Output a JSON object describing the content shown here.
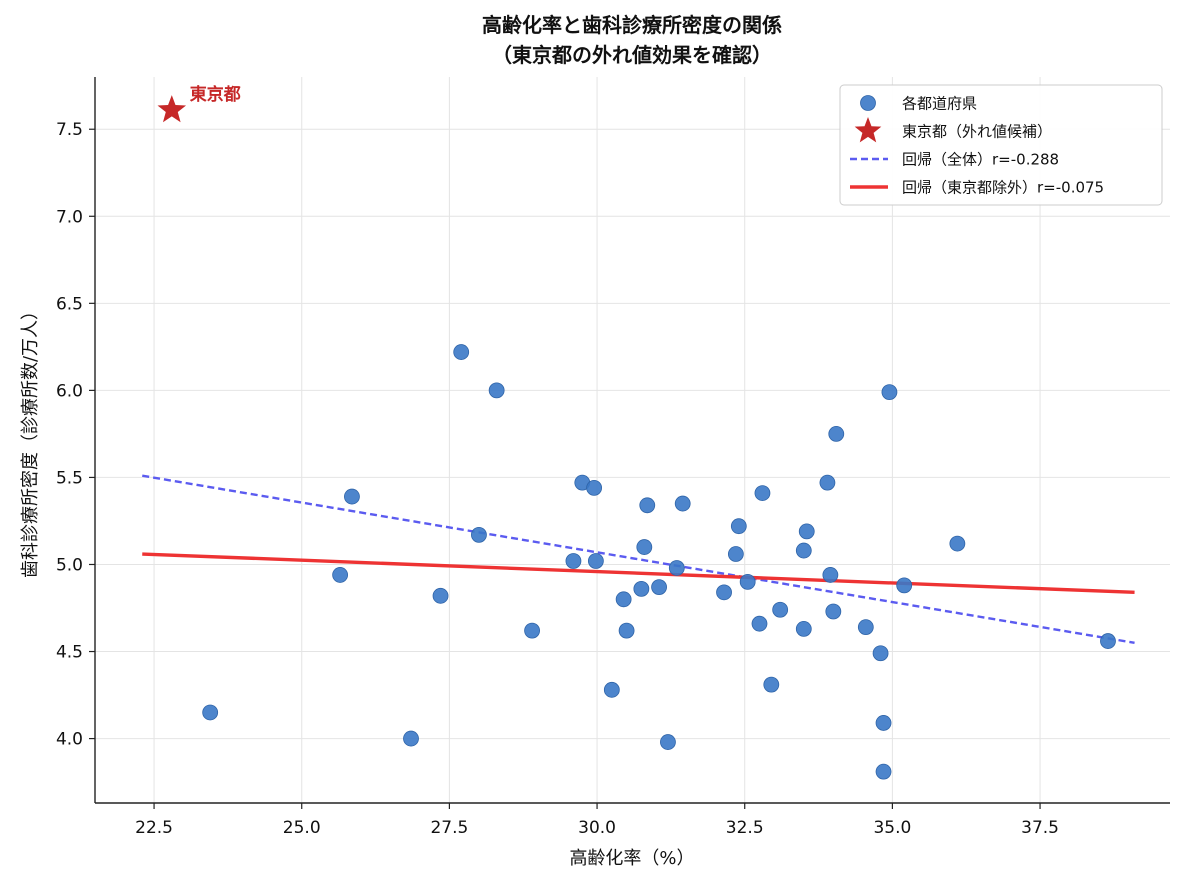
{
  "chart_data": {
    "type": "scatter",
    "title": "高齢化率と歯科診療所密度の関係",
    "subtitle": "（東京都の外れ値効果を確認）",
    "xlabel": "高齢化率（%）",
    "ylabel": "歯科診療所密度（診療所数/万人）",
    "xlim": [
      21.5,
      39.7
    ],
    "ylim": [
      3.63,
      7.8
    ],
    "xticks": [
      22.5,
      25.0,
      27.5,
      30.0,
      32.5,
      35.0,
      37.5
    ],
    "xtick_labels": [
      "22.5",
      "25.0",
      "27.5",
      "30.0",
      "32.5",
      "35.0",
      "37.5"
    ],
    "yticks": [
      4.0,
      4.5,
      5.0,
      5.5,
      6.0,
      6.5,
      7.0,
      7.5
    ],
    "ytick_labels": [
      "4.0",
      "4.5",
      "5.0",
      "5.5",
      "6.0",
      "6.5",
      "7.0",
      "7.5"
    ],
    "grid": true,
    "legend_position": "top-right",
    "series": [
      {
        "name": "各都道府県",
        "marker": "circle",
        "color": "#3a78c6",
        "x": [
          23.45,
          25.65,
          25.85,
          26.85,
          27.35,
          27.7,
          28.0,
          28.3,
          28.9,
          29.6,
          29.75,
          29.95,
          29.98,
          30.25,
          30.45,
          30.5,
          30.75,
          30.8,
          30.85,
          31.05,
          31.2,
          31.35,
          31.45,
          32.15,
          32.35,
          32.4,
          32.55,
          32.75,
          32.8,
          32.95,
          33.1,
          33.5,
          33.5,
          33.55,
          33.9,
          33.95,
          34.0,
          34.05,
          34.55,
          34.8,
          34.85,
          34.85,
          34.95,
          35.2,
          36.1,
          38.65
        ],
        "y": [
          4.15,
          4.94,
          5.39,
          4.0,
          4.82,
          6.22,
          5.17,
          6.0,
          4.62,
          5.02,
          5.47,
          5.44,
          5.02,
          4.28,
          4.8,
          4.62,
          4.86,
          5.1,
          5.34,
          4.87,
          3.98,
          4.98,
          5.35,
          4.84,
          5.06,
          5.22,
          4.9,
          4.66,
          5.41,
          4.31,
          4.74,
          4.63,
          5.08,
          5.19,
          5.47,
          4.94,
          4.73,
          5.75,
          4.64,
          4.49,
          4.09,
          3.81,
          5.99,
          4.88,
          5.12,
          4.56
        ]
      },
      {
        "name": "東京都（外れ値候補）",
        "marker": "star",
        "color": "#c62828",
        "x": [
          22.8
        ],
        "y": [
          7.61
        ]
      }
    ],
    "lines": [
      {
        "name": "回帰（全体）r=-0.288",
        "style": "dashed",
        "color": "#5b5bf0",
        "x": [
          22.3,
          39.1
        ],
        "y": [
          5.51,
          4.55
        ]
      },
      {
        "name": "回帰（東京都除外）r=-0.075",
        "style": "solid",
        "color": "#ee3333",
        "x": [
          22.3,
          39.1
        ],
        "y": [
          5.06,
          4.84
        ]
      }
    ],
    "annotations": [
      {
        "text": "東京都",
        "x": 22.8,
        "y": 7.61,
        "color": "#c62828"
      }
    ]
  }
}
